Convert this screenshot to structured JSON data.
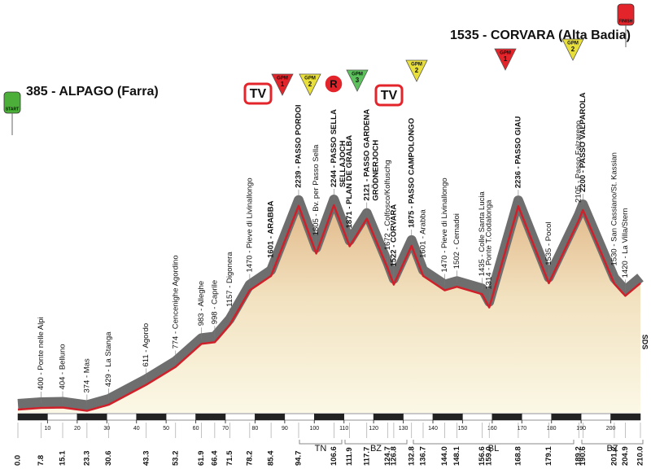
{
  "chart_data": {
    "type": "area",
    "labels": [
      "385 - ALPAGO (Farra)",
      "400 - Ponte nelle Alpi",
      "404 - Belluno",
      "374 - Mas",
      "429 - La Stanga",
      "611 - Agordo",
      "774 - Cencenighe Agordino",
      "983 - Alleghe",
      "998 - Caprile",
      "1157 - Digonera",
      "1470 - Pieve di Livinallongo",
      "1601 - ARABBA",
      "2239 - PASSO PORDOI",
      "1805 - Bv. per Passo Sella",
      "2244 - PASSO SELLA",
      "1871 - PLAN DE GRALBA",
      "2121 - PASSO GARDENA",
      "1672 - Colfosco/Kolfuschg",
      "1522 - CORVARA",
      "1875 - PASSO CAMPOLONGO",
      "1601 - Arabba",
      "1470 - Pieve di Livinallongo",
      "1502 - Cernadoi",
      "1435 - Colle Santa Lucia",
      "1314 - Ponte T.Codalonga",
      "2236 - PASSO GIAU",
      "1535 - Pocol",
      "2105 - Passo Falzarego",
      "2200 - PASSO VALPAROLA",
      "1530 - San Cassiano/St. Kassian",
      "1420 - La Villa/Stern",
      "1535 - CORVARA (Alta Badia)"
    ],
    "sublabels": [
      null,
      null,
      null,
      null,
      null,
      null,
      null,
      null,
      null,
      null,
      null,
      null,
      null,
      null,
      "SELLAJOCH",
      null,
      "GRÖDNERJOCH",
      null,
      null,
      null,
      null,
      null,
      null,
      null,
      null,
      null,
      null,
      null,
      null,
      null,
      null,
      null
    ],
    "x": [
      {
        "value": 0,
        "label": "0.0"
      },
      7.8,
      15.1,
      23.3,
      30.6,
      43.3,
      53.2,
      61.9,
      66.4,
      71.5,
      78.2,
      85.4,
      94.7,
      null,
      106.6,
      111.9,
      117.7,
      124.7,
      126.8,
      132.8,
      136.7,
      {
        "value": 144,
        "label": "144.0"
      },
      148.1,
      156.6,
      {
        "value": 159,
        "label": "159.0"
      },
      168.8,
      179.1,
      189.2,
      190.6,
      201.2,
      204.9,
      {
        "value": 210,
        "label": "210.0"
      }
    ],
    "values": [
      385,
      400,
      404,
      374,
      429,
      611,
      774,
      983,
      998,
      1157,
      1470,
      1601,
      2239,
      1805,
      2244,
      1871,
      2121,
      1672,
      1522,
      1875,
      1601,
      1470,
      1502,
      1435,
      1314,
      2236,
      1535,
      2105,
      2200,
      1530,
      1420,
      1535
    ],
    "xlim": [
      0,
      210
    ],
    "xticks": [
      10,
      20,
      30,
      40,
      50,
      60,
      70,
      80,
      90,
      100,
      110,
      120,
      130,
      140,
      150,
      160,
      170,
      180,
      190,
      200
    ],
    "regions": [
      "TN",
      "BZ",
      "BL",
      "BZ"
    ],
    "sds": "SDS",
    "badges": [
      {
        "text": "START"
      },
      {
        "text": "TV"
      },
      {
        "text": "GPM",
        "number": 1
      },
      {
        "text": "GPM",
        "number": 2
      },
      {
        "text": "R"
      },
      {
        "text": "GPM",
        "number": 3
      },
      {
        "text": "TV"
      },
      {
        "text": "GPM",
        "number": 2
      },
      {
        "text": "GPM",
        "number": 1
      },
      {
        "text": "GPM",
        "number": 2
      },
      {
        "text": "FINISH"
      }
    ],
    "line_color": "#d0202a"
  }
}
